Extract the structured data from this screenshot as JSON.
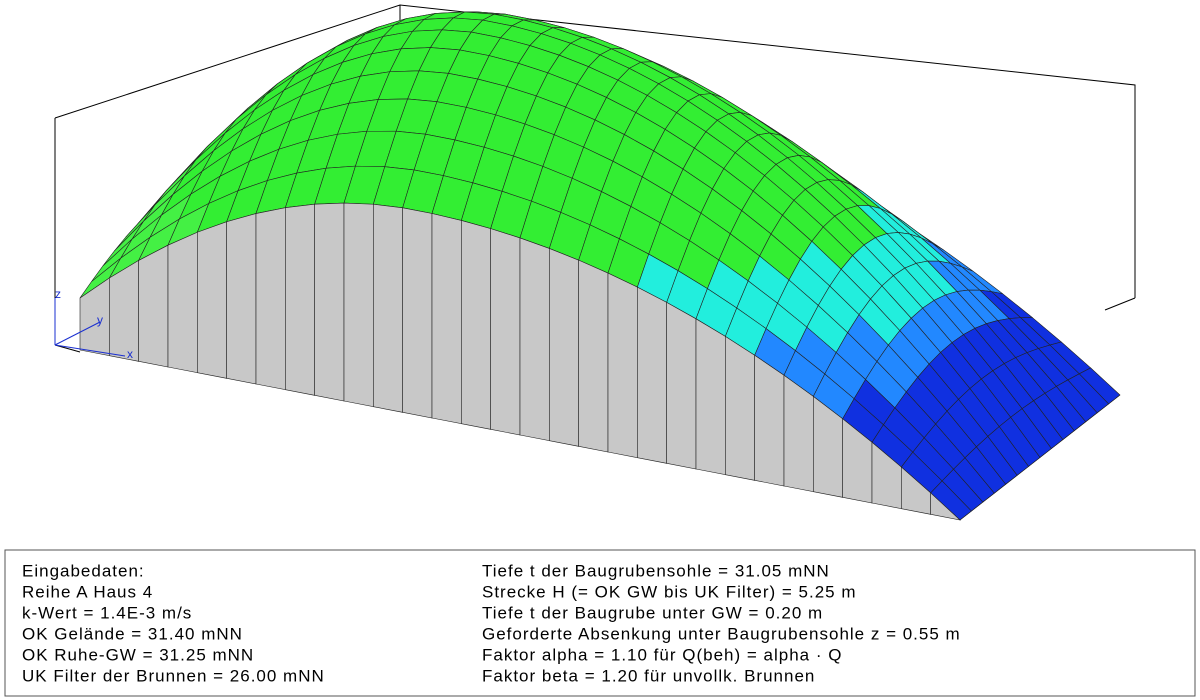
{
  "axes": {
    "z": "z",
    "y": "y",
    "x": "x"
  },
  "info": {
    "left": [
      "Eingabedaten:",
      "Reihe A Haus 4",
      "k-Wert =  1.4E-3 m/s",
      "OK Gelände = 31.40 mNN",
      "OK Ruhe-GW = 31.25 mNN",
      "UK Filter der Brunnen = 26.00 mNN"
    ],
    "right": [
      "Tiefe t der Baugrubensohle = 31.05 mNN",
      "Strecke H (= OK GW bis UK Filter) = 5.25 m",
      "Tiefe t der Baugrube unter GW = 0.20 m",
      "Geforderte Absenkung unter Baugrubensohle z = 0.55 m",
      "Faktor alpha = 1.10 für Q(beh) = alpha · Q",
      "Faktor beta = 1.20 für unvollk. Brunnen"
    ]
  }
}
